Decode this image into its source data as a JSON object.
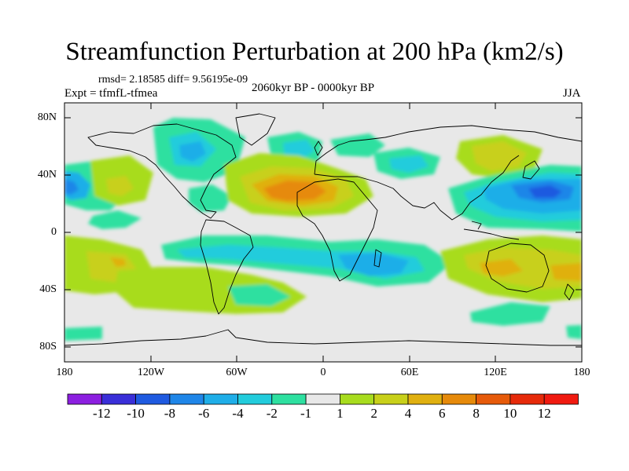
{
  "title": "Streamfunction Perturbation at 200 hPa (km2/s)",
  "stats": "rmsd= 2.18585  diff= 9.56195e-09",
  "experiment": "Expt = tfmfL-tfmea",
  "period": "2060kyr BP - 0000kyr BP",
  "season": "JJA",
  "y_axis_labels": [
    "80N",
    "40N",
    "0",
    "40S",
    "80S"
  ],
  "x_axis_labels": [
    "180",
    "120W",
    "60W",
    "0",
    "60E",
    "120E",
    "180"
  ],
  "colorbar": {
    "labels": [
      "-12",
      "-10",
      "-8",
      "-6",
      "-4",
      "-2",
      "-1",
      "1",
      "2",
      "4",
      "6",
      "8",
      "10",
      "12"
    ],
    "colors": [
      "#8c1fe0",
      "#3a2fd8",
      "#1f5ae0",
      "#1f86e8",
      "#1faee8",
      "#22ccdc",
      "#2ee0a0",
      "#e8e8e8",
      "#a8dc1e",
      "#c8d01a",
      "#e0b010",
      "#e68a0a",
      "#e65a0a",
      "#e62a0a",
      "#f01a10"
    ]
  },
  "colors": {
    "background": "#e8e8e8",
    "coast": "#000000"
  }
}
